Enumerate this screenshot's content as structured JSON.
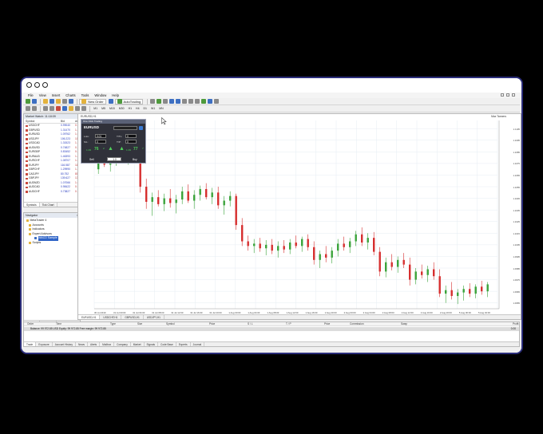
{
  "menu": [
    "File",
    "View",
    "Insert",
    "Charts",
    "Tools",
    "Window",
    "Help"
  ],
  "toolbar": {
    "new_order": "New Order",
    "auto_trading": "AutoTrading",
    "timeframes": [
      "M1",
      "M5",
      "M15",
      "M30",
      "H1",
      "H4",
      "D1",
      "W1",
      "MN"
    ]
  },
  "market_watch": {
    "title": "Market Watch: 11:18:09",
    "columns": [
      "Symbol",
      "Bid",
      "Ask"
    ],
    "rows": [
      {
        "symbol": "USDCHF",
        "bid": "0.99040",
        "ask": "0.99060"
      },
      {
        "symbol": "GBPUSD",
        "bid": "1.31470",
        "ask": "1.31488"
      },
      {
        "symbol": "EURUSD",
        "bid": "1.09762",
        "ask": "1.09777"
      },
      {
        "symbol": "USDJPY",
        "bid": "106.223",
        "ask": "106.232"
      },
      {
        "symbol": "USDCAD",
        "bid": "1.31523",
        "ask": "1.31534"
      },
      {
        "symbol": "AUDUSD",
        "bid": "0.74827",
        "ask": "0.74877"
      },
      {
        "symbol": "EURGBP",
        "bid": "0.83452",
        "ask": "0.83469"
      },
      {
        "symbol": "EURAUD",
        "bid": "1.46393",
        "ask": "1.46444"
      },
      {
        "symbol": "EURCHF",
        "bid": "1.08707",
        "ask": "1.08727"
      },
      {
        "symbol": "EURJPY",
        "bid": "116.587",
        "ask": "116.602"
      },
      {
        "symbol": "GBPCHF",
        "bid": "1.29990",
        "ask": "1.30040"
      },
      {
        "symbol": "CADJPY",
        "bid": "80.752",
        "ask": "80.803"
      },
      {
        "symbol": "GBPJPY",
        "bid": "139.627",
        "ask": "139.718"
      },
      {
        "symbol": "AUDNZD",
        "bid": "1.07066",
        "ask": "1.07172"
      },
      {
        "symbol": "AUDCAD",
        "bid": "0.98422",
        "ask": "0.98487"
      },
      {
        "symbol": "AUDCHF",
        "bid": "0.73827",
        "ask": "0.73863"
      }
    ],
    "tabs": [
      "Symbols",
      "Tick Chart"
    ]
  },
  "navigator": {
    "title": "Navigator",
    "items": [
      "MetaTrader 4",
      "Accounts",
      "Indicators",
      "Expert Advisors",
      "MACD Sample",
      "Scripts"
    ],
    "tabs": [
      "Common",
      "Favorites"
    ]
  },
  "chart": {
    "title": "EURUSD,H1",
    "indicator_label": "Max Tanners",
    "tabs": [
      "EURUSD,H1",
      "USDCHF,H1",
      "GBPUSD,H1",
      "USDJPY,H1"
    ]
  },
  "chart_data": {
    "type": "candlestick",
    "title": "EURUSD,H1",
    "ylim": [
      1.095,
      1.1112
    ],
    "yticks": [
      "1.1105",
      "1.1095",
      "1.1085",
      "1.1075",
      "1.1065",
      "1.1055",
      "1.1045",
      "1.1035",
      "1.1025",
      "1.1015",
      "1.1005",
      "1.0995",
      "1.0985",
      "1.0975",
      "1.0965",
      "1.0955"
    ],
    "xticks": [
      "30 Jul 2019",
      "31 Jul 00:00",
      "31 Jul 04:00",
      "31 Jul 08:00",
      "31 Jul 12:00",
      "31 Jul 16:00",
      "31 Jul 20:00",
      "1 Aug 00:00",
      "1 Aug 04:00",
      "1 Aug 08:00",
      "1 Aug 12:00",
      "1 Aug 16:00",
      "1 Aug 20:00",
      "2 Aug 00:00",
      "2 Aug 04:00",
      "2 Aug 08:00",
      "2 Aug 12:00",
      "2 Aug 16:00",
      "2 Aug 20:00",
      "5 Aug 00:00",
      "5 Aug 04:00"
    ],
    "ohlc": [
      [
        1.107,
        1.1082,
        1.1066,
        1.1078
      ],
      [
        1.1078,
        1.1086,
        1.1072,
        1.1074
      ],
      [
        1.1074,
        1.108,
        1.1068,
        1.1076
      ],
      [
        1.1076,
        1.1088,
        1.1073,
        1.1085
      ],
      [
        1.1085,
        1.109,
        1.1078,
        1.108
      ],
      [
        1.108,
        1.1087,
        1.1074,
        1.1083
      ],
      [
        1.1083,
        1.1091,
        1.1079,
        1.1086
      ],
      [
        1.1086,
        1.1088,
        1.105,
        1.1055
      ],
      [
        1.1055,
        1.1062,
        1.1036,
        1.1042
      ],
      [
        1.1042,
        1.105,
        1.103,
        1.1046
      ],
      [
        1.1046,
        1.1052,
        1.1038,
        1.104
      ],
      [
        1.104,
        1.1049,
        1.1034,
        1.1045
      ],
      [
        1.1045,
        1.1053,
        1.1037,
        1.1041
      ],
      [
        1.1041,
        1.1048,
        1.1032,
        1.1044
      ],
      [
        1.1044,
        1.1055,
        1.104,
        1.1051
      ],
      [
        1.1051,
        1.1057,
        1.1041,
        1.1043
      ],
      [
        1.1043,
        1.1052,
        1.1036,
        1.1048
      ],
      [
        1.1048,
        1.1056,
        1.1043,
        1.1053
      ],
      [
        1.1053,
        1.1058,
        1.1044,
        1.1046
      ],
      [
        1.1046,
        1.1054,
        1.104,
        1.105
      ],
      [
        1.105,
        1.1055,
        1.1036,
        1.1039
      ],
      [
        1.1039,
        1.1047,
        1.1031,
        1.1043
      ],
      [
        1.1043,
        1.1051,
        1.1038,
        1.1047
      ],
      [
        1.1047,
        1.1049,
        1.1018,
        1.1022
      ],
      [
        1.1022,
        1.1028,
        1.1004,
        1.1008
      ],
      [
        1.1008,
        1.1013,
        1.1,
        1.1004
      ],
      [
        1.1004,
        1.101,
        1.0998,
        1.1006
      ],
      [
        1.1006,
        1.1011,
        1.0999,
        1.1002
      ],
      [
        1.1002,
        1.1009,
        1.0996,
        1.1005
      ],
      [
        1.1005,
        1.101,
        1.0997,
        1.1
      ],
      [
        1.1,
        1.1008,
        1.0994,
        1.1004
      ],
      [
        1.1004,
        1.1009,
        1.0998,
        1.1001
      ],
      [
        1.1001,
        1.101,
        1.0997,
        1.1007
      ],
      [
        1.1007,
        1.1013,
        1.1002,
        1.1004
      ],
      [
        1.1004,
        1.1012,
        1.0999,
        1.101
      ],
      [
        1.101,
        1.1014,
        1.1,
        1.1003
      ],
      [
        1.1003,
        1.1008,
        1.0988,
        1.0992
      ],
      [
        1.0992,
        1.1,
        1.0985,
        1.0997
      ],
      [
        1.0997,
        1.1004,
        1.099,
        1.0994
      ],
      [
        1.0994,
        1.1003,
        1.0989,
        1.1
      ],
      [
        1.1,
        1.101,
        1.0995,
        1.1006
      ],
      [
        1.1006,
        1.1012,
        1.1,
        1.1003
      ],
      [
        1.1003,
        1.1011,
        1.0998,
        1.1008
      ],
      [
        1.1008,
        1.1017,
        1.1004,
        1.1014
      ],
      [
        1.1014,
        1.102,
        1.1004,
        1.1007
      ],
      [
        1.1007,
        1.1015,
        1.1001,
        1.1011
      ],
      [
        1.1011,
        1.1016,
        1.0996,
        1.0999
      ],
      [
        1.0999,
        1.1003,
        1.0978,
        1.0982
      ],
      [
        1.0982,
        1.0994,
        1.0977,
        1.099
      ],
      [
        1.099,
        1.0997,
        1.0983,
        1.0986
      ],
      [
        1.0986,
        1.0995,
        1.0981,
        1.0992
      ],
      [
        1.0992,
        1.0998,
        1.0985,
        1.0988
      ],
      [
        1.0988,
        1.0994,
        1.097,
        1.0975
      ],
      [
        1.0975,
        1.0985,
        1.0971,
        1.0982
      ],
      [
        1.0982,
        1.0988,
        1.0976,
        1.0979
      ],
      [
        1.0979,
        1.0987,
        1.0973,
        1.0984
      ],
      [
        1.0984,
        1.099,
        1.0975,
        1.0978
      ],
      [
        1.0978,
        1.0984,
        1.096,
        1.0963
      ],
      [
        1.0963,
        1.097,
        1.0955,
        1.0966
      ],
      [
        1.0966,
        1.0973,
        1.0958,
        1.0961
      ],
      [
        1.0961,
        1.0967,
        1.0954,
        1.0964
      ],
      [
        1.0964,
        1.097,
        1.0957,
        1.0967
      ],
      [
        1.0967,
        1.0972,
        1.096,
        1.0963
      ],
      [
        1.0963,
        1.0971,
        1.0959,
        1.0969
      ],
      [
        1.0969,
        1.0974,
        1.0962,
        1.0965
      ],
      [
        1.0965,
        1.0973,
        1.096,
        1.0971
      ]
    ]
  },
  "trade_panel": {
    "title": "One Click Trading",
    "symbol": "EURUSD",
    "lots_label": "Lots:",
    "lots_value": "0.01",
    "sl_label": "S/L:",
    "tp_label": "T/P:",
    "ttl_label": "T/TL:",
    "sl_value": "0",
    "tp_value": "0",
    "ttl_value": "0",
    "bid_small": "1.09",
    "bid_big": "76",
    "bid_sup": "2",
    "ask_small": "1.09",
    "ask_big": "77",
    "ask_sup": "7",
    "sell": "Sell",
    "buy": "Buy",
    "volume": "1.0"
  },
  "terminal": {
    "columns": [
      "Order",
      "Time",
      "Type",
      "Size",
      "Symbol",
      "Price",
      "S / L",
      "T / P",
      "Price",
      "Commission",
      "Swap",
      "Profit"
    ],
    "balance": "Balance: 99 972.85 USD  Equity: 99 972.85  Free margin: 99 972.85",
    "profit": "0.00",
    "tabs": [
      "Trade",
      "Exposure",
      "Account History",
      "News",
      "Alerts",
      "Mailbox",
      "Company",
      "Market",
      "Signals",
      "Code Base",
      "Experts",
      "Journal"
    ]
  }
}
